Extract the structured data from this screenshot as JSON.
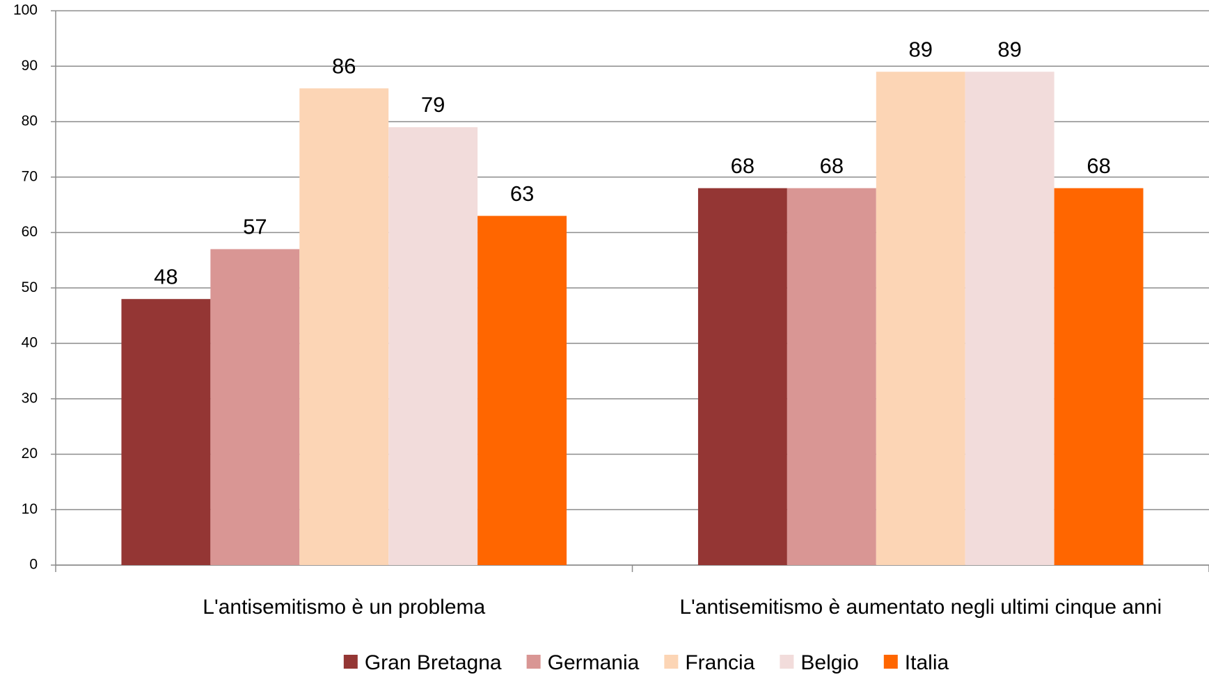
{
  "chart_data": {
    "type": "bar",
    "categories": [
      "L'antisemitismo è un problema",
      "L'antisemitismo è aumentato negli ultimi cinque anni"
    ],
    "series": [
      {
        "name": "Gran Bretagna",
        "color": "#943634",
        "values": [
          48,
          68
        ]
      },
      {
        "name": "Germania",
        "color": "#d99694",
        "values": [
          57,
          68
        ]
      },
      {
        "name": "Francia",
        "color": "#fcd5b5",
        "values": [
          86,
          89
        ]
      },
      {
        "name": "Belgio",
        "color": "#f2dcdb",
        "values": [
          79,
          89
        ]
      },
      {
        "name": "Italia",
        "color": "#ff6600",
        "values": [
          63,
          68
        ]
      }
    ],
    "ylim": [
      0,
      100
    ],
    "yticks": [
      0,
      10,
      20,
      30,
      40,
      50,
      60,
      70,
      80,
      90,
      100
    ],
    "grid": true,
    "legend": "bottom"
  }
}
